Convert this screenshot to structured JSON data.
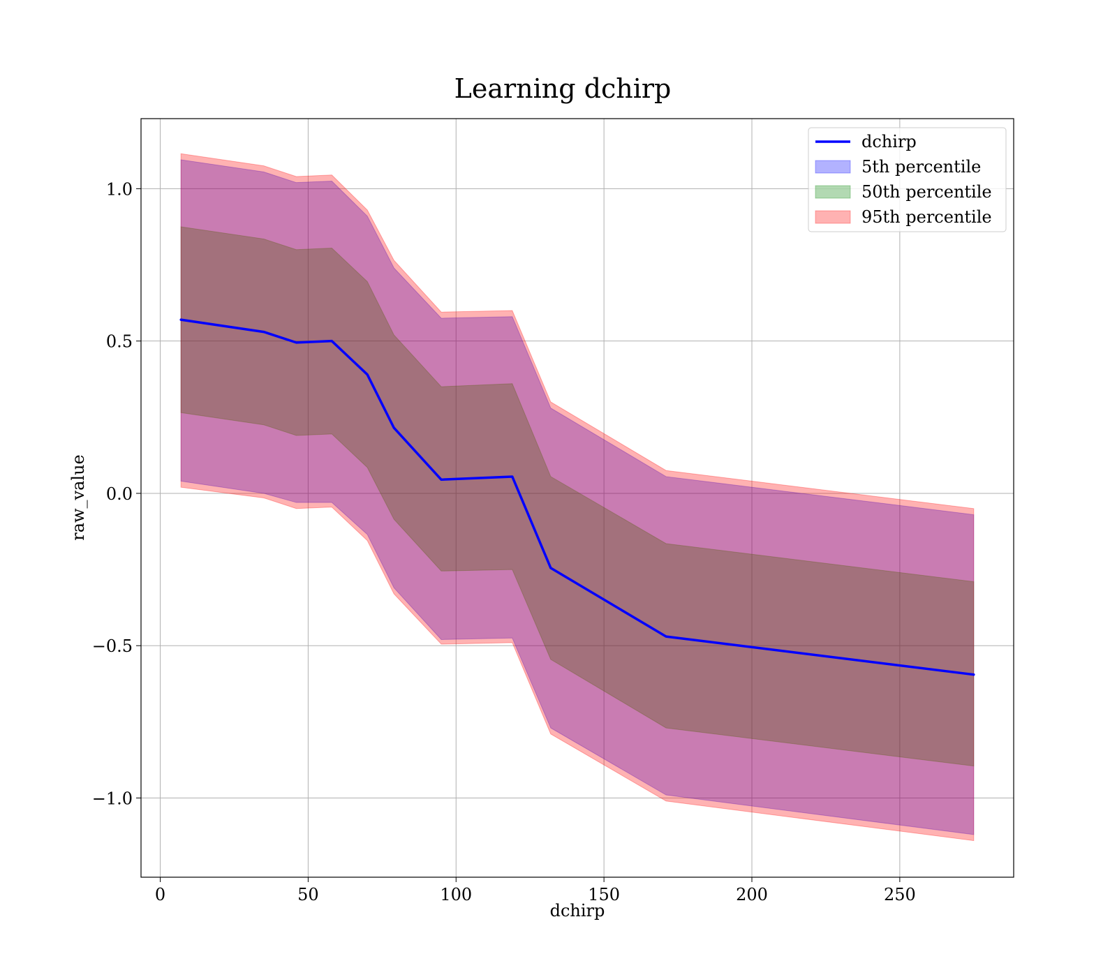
{
  "chart_data": {
    "type": "area",
    "title": "Learning dchirp",
    "xlabel": "dchirp",
    "ylabel": "raw_value",
    "xlim": [
      -6.5,
      288.5
    ],
    "ylim": [
      -1.26,
      1.23
    ],
    "x_ticks": [
      0,
      50,
      100,
      150,
      200,
      250
    ],
    "x_tick_labels": [
      "0",
      "50",
      "100",
      "150",
      "200",
      "250"
    ],
    "y_ticks": [
      1.0,
      0.5,
      0.0,
      -0.5,
      -1.0
    ],
    "y_tick_labels": [
      "1.0",
      "0.5",
      "0.0",
      "−0.5",
      "−1.0"
    ],
    "grid": true,
    "legend_position": "top-right",
    "x": [
      7,
      35,
      46,
      58,
      70,
      79,
      95,
      119,
      132,
      171,
      275
    ],
    "series": [
      {
        "name": "dchirp",
        "kind": "line",
        "color": "#0000ff",
        "values": [
          0.57,
          0.53,
          0.495,
          0.5,
          0.39,
          0.215,
          0.045,
          0.055,
          -0.245,
          -0.47,
          -0.595
        ]
      },
      {
        "name": "5th percentile",
        "kind": "band",
        "color": "#0000ff",
        "lower": [
          0.04,
          0.0,
          -0.03,
          -0.03,
          -0.135,
          -0.31,
          -0.48,
          -0.475,
          -0.77,
          -0.99,
          -1.12
        ],
        "upper": [
          1.095,
          1.055,
          1.02,
          1.025,
          0.91,
          0.74,
          0.575,
          0.58,
          0.28,
          0.055,
          -0.07
        ]
      },
      {
        "name": "50th percentile",
        "kind": "band",
        "color": "#008000",
        "lower": [
          0.265,
          0.225,
          0.19,
          0.195,
          0.085,
          -0.085,
          -0.255,
          -0.25,
          -0.545,
          -0.77,
          -0.895
        ],
        "upper": [
          0.875,
          0.835,
          0.8,
          0.805,
          0.695,
          0.52,
          0.35,
          0.36,
          0.055,
          -0.165,
          -0.29
        ]
      },
      {
        "name": "95th percentile",
        "kind": "band",
        "color": "#ff0000",
        "lower": [
          0.02,
          -0.015,
          -0.05,
          -0.045,
          -0.155,
          -0.33,
          -0.495,
          -0.49,
          -0.79,
          -1.01,
          -1.14
        ],
        "upper": [
          1.115,
          1.075,
          1.04,
          1.045,
          0.93,
          0.765,
          0.595,
          0.6,
          0.3,
          0.075,
          -0.05
        ]
      }
    ]
  }
}
